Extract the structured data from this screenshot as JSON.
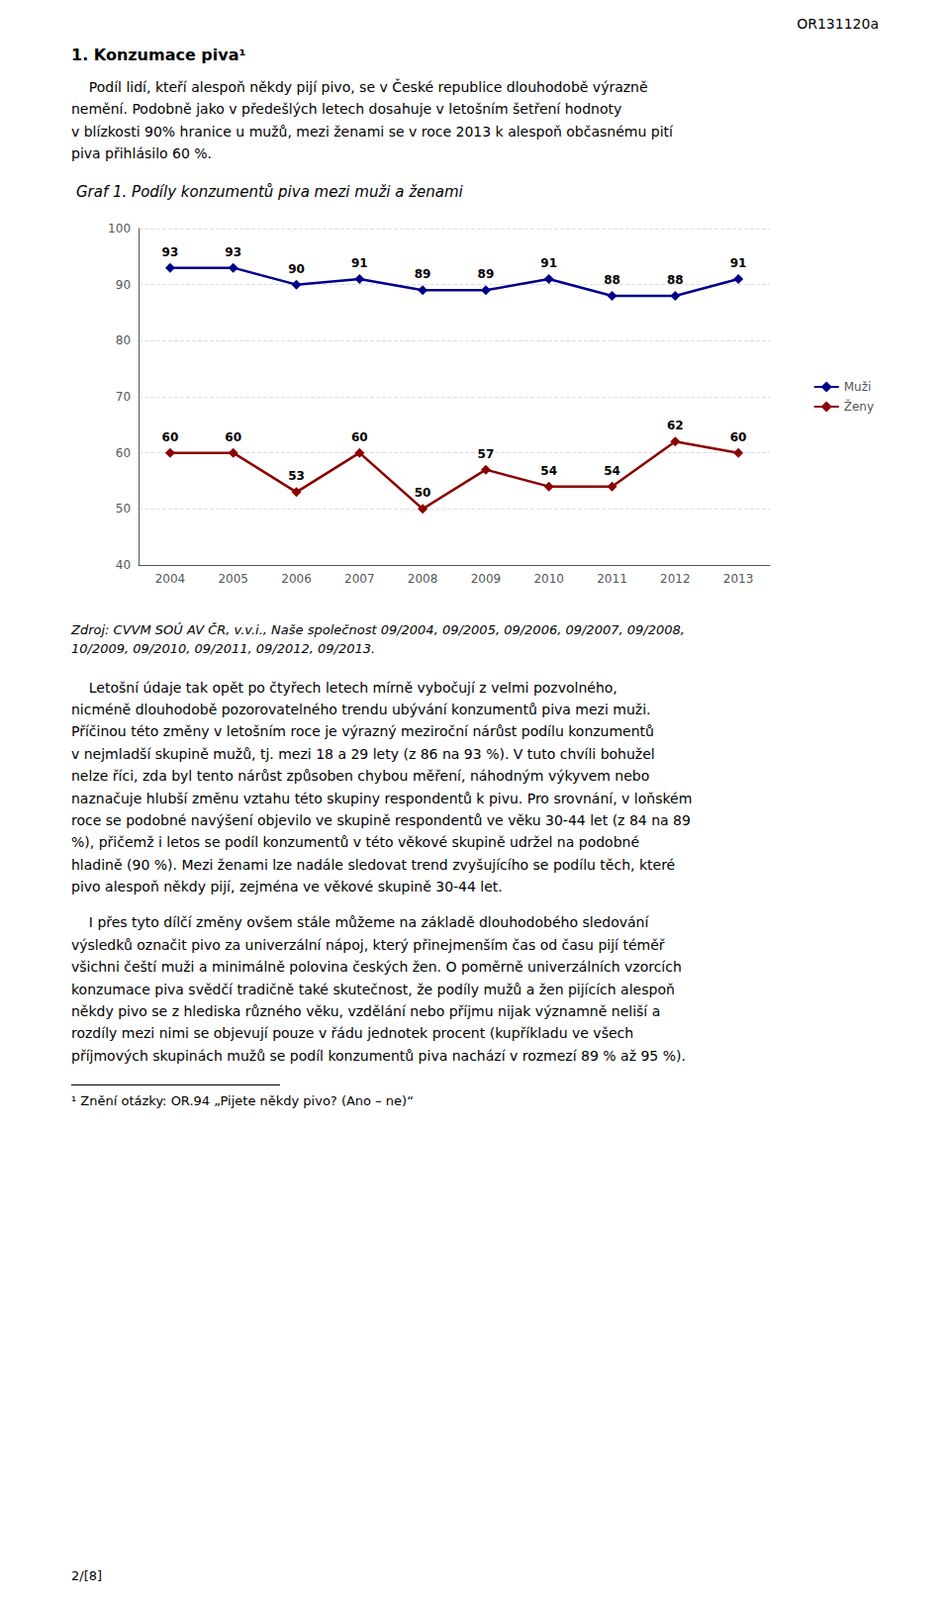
{
  "chart_data": {
    "type": "line",
    "title": "Graf 1. Podíly konzumentů piva mezi muži a ženami",
    "categories": [
      2004,
      2005,
      2006,
      2007,
      2008,
      2009,
      2010,
      2011,
      2012,
      2013
    ],
    "series": [
      {
        "name": "Muži",
        "color": "#00008B",
        "values": [
          93,
          93,
          90,
          91,
          89,
          89,
          91,
          88,
          88,
          91
        ]
      },
      {
        "name": "Ženy",
        "color": "#8B0000",
        "values": [
          60,
          60,
          53,
          60,
          50,
          57,
          54,
          54,
          62,
          60
        ]
      }
    ],
    "ylim": [
      40,
      100
    ],
    "yticks": [
      40,
      50,
      60,
      70,
      80,
      90,
      100
    ],
    "grid": true,
    "legend": "right",
    "data_labels": true,
    "marker": "diamond",
    "annotations": [
      "OR131120a",
      "1. Konzumace piva¹",
      "    Podíl lidí, kteří alespoň někdy pijí pivo, se v České republice dlouhodobě výrazně\nnemění. Podobně jako v předešlých letech dosahuje v letošním šetření hodnoty\nv blízkosti 90% hranice u mužů, mezi ženami se v roce 2013 k alespoň občasnému pití\npiva přihlásilo 60 %.",
      "Zdroj: CVVM SOÚ AV ČR, v.v.i., Naše společnost 09/2004, 09/2005, 09/2006, 09/2007, 09/2008,\n10/2009, 09/2010, 09/2011, 09/2012, 09/2013.",
      "    Letošní údaje tak opět po čtyřech letech mírně vybočují z velmi pozvolného,\nnicméně dlouhodobě pozorovatelného trendu ubývání konzumentů piva mezi muži.\nPříčinou této změny v letošním roce je výrazný meziroční nárůst podílu konzumentů\nv nejmladší skupině mužů, tj. mezi 18 a 29 lety (z 86 na 93 %). V tuto chvíli bohužel\nnelze říci, zda byl tento nárůst způsoben chybou měření, náhodným výkyvem nebo\nnaznačuje hlubší změnu vztahu této skupiny respondentů k pivu. Pro srovnání, v loňském\nroce se podobné navýšení objevilo ve skupině respondentů ve věku 30-44 let (z 84 na 89\n%), přičemž i letos se podíl konzumentů v této věkové skupině udržel na podobné\nhladině (90 %). Mezi ženami lze nadále sledovat trend zvyšujícího se podílu těch, které\npivo alespoň někdy pijí, zejména ve věkové skupině 30-44 let.",
      "    I přes tyto dílčí změny ovšem stále můžeme na základě dlouhodobého sledování\nvýsledků označit pivo za univerzální nápoj, který přinejmenším čas od času pijí téměř\nvšichni čeští muži a minimálně polovina českých žen. O poměrně univerzálních vzorcích\nkonzumace piva svědčí tradičně také skutečnost, že podíly mužů a žen pijících alespoň\nněkdy pivo se z hlediska různého věku, vzdělání nebo příjmu nijak významně neliší a\nrozdíly mezi nimi se objevují pouze v řádu jednotek procent (kupříkladu ve všech\npříjmových skupinách mužů se podíl konzumentů piva nachází v rozmezí 89 % až 95 %).",
      "¹ Znění otázky: OR.94 „Pijete někdy pivo? (Ano – ne)“",
      "2/[8]"
    ]
  }
}
